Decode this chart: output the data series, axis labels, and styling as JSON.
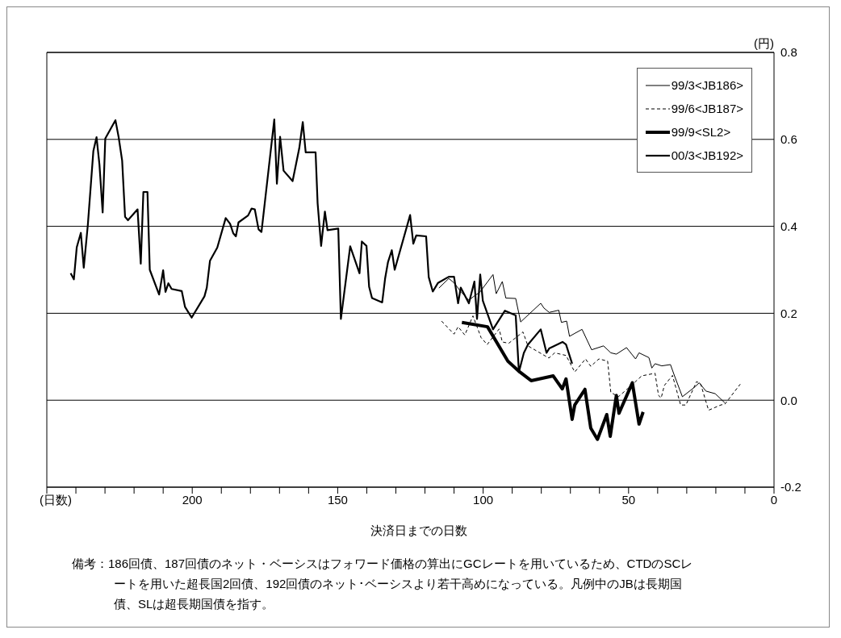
{
  "chart_data": {
    "type": "line",
    "ylabel": "(円)",
    "xlabel": "決済日までの日数",
    "annotations": [
      "(日数)",
      "備考：186回債、187回債のネット・ベーシスはフォワード価格の算出にGCレートを用いているため、CTDのSCレートを用いた超長国2回債、192回債のネット･ベーシスより若干高めになっている。凡例中のJBは長期国債、SLは超長期国債を指す。"
    ],
    "xlim": [
      250,
      0
    ],
    "xticks": [
      {
        "value": 250,
        "label": null
      },
      {
        "value": 240,
        "label": null
      },
      {
        "value": 230,
        "label": null
      },
      {
        "value": 220,
        "label": null
      },
      {
        "value": 210,
        "label": null
      },
      200,
      {
        "value": 190,
        "label": null
      },
      {
        "value": 180,
        "label": null
      },
      {
        "value": 170,
        "label": null
      },
      {
        "value": 160,
        "label": null
      },
      150,
      {
        "value": 140,
        "label": null
      },
      {
        "value": 130,
        "label": null
      },
      {
        "value": 120,
        "label": null
      },
      {
        "value": 110,
        "label": null
      },
      100,
      {
        "value": 90,
        "label": null
      },
      {
        "value": 80,
        "label": null
      },
      {
        "value": 70,
        "label": null
      },
      {
        "value": 60,
        "label": null
      },
      50,
      {
        "value": 40,
        "label": null
      },
      {
        "value": 30,
        "label": null
      },
      {
        "value": 20,
        "label": null
      },
      {
        "value": 10,
        "label": null
      },
      0
    ],
    "ylim": [
      -0.2,
      0.8
    ],
    "yticks": [
      {
        "value": -0.2,
        "label": "-0.2"
      },
      {
        "value": 0,
        "label": "0.0"
      },
      {
        "value": 0.2,
        "label": "0.2"
      },
      {
        "value": 0.4,
        "label": "0.4"
      },
      {
        "value": 0.6,
        "label": "0.6"
      },
      {
        "value": 0.8,
        "label": "0.8"
      }
    ],
    "grid": "y",
    "legend": "top right",
    "marker": "none",
    "series": [
      {
        "name": "99/3<JB186>",
        "color": "#000000",
        "line_style": "solid",
        "x": [
          115.2,
          111.8,
          110.0,
          107.7,
          104.9,
          103.0,
          101.2,
          96.6,
          95.5,
          93.4,
          92.2,
          88.8,
          87.1,
          80.2,
          79.1,
          77.3,
          74.0,
          73.1,
          71.3,
          70.3,
          66.0,
          62.7,
          58.6,
          56.1,
          54.2,
          50.7,
          47.6,
          46.4,
          43.0,
          42.0,
          40.9,
          38.6,
          35.6,
          34.2,
          31.5,
          27.5,
          25.7,
          23.4,
          20.2,
          16.9
        ],
        "values": [
          0.258,
          0.28,
          0.27,
          0.25,
          0.23,
          0.24,
          0.248,
          0.289,
          0.245,
          0.273,
          0.235,
          0.234,
          0.18,
          0.223,
          0.212,
          0.202,
          0.207,
          0.179,
          0.182,
          0.147,
          0.163,
          0.116,
          0.125,
          0.109,
          0.106,
          0.121,
          0.095,
          0.109,
          0.098,
          0.074,
          0.084,
          0.079,
          0.082,
          0.056,
          0.008,
          0.029,
          0.04,
          0.021,
          0.015,
          -0.006
        ]
      },
      {
        "name": "99/6<JB187>",
        "color": "#000000",
        "line_style": "dashed",
        "x": [
          114.3,
          110.0,
          108.6,
          106.3,
          103.5,
          100.7,
          98.6,
          94.5,
          93.4,
          91.2,
          86.3,
          84.6,
          77.4,
          75.4,
          71.5,
          68.5,
          64.8,
          63.0,
          60.2,
          57.2,
          56.1,
          53.5,
          49.2,
          45.5,
          40.9,
          39.7,
          38.8,
          37.7,
          34.9,
          32.1,
          30.3,
          26.6,
          25.2,
          22.5,
          18.3,
          16.9,
          11.6
        ],
        "values": [
          0.182,
          0.152,
          0.169,
          0.15,
          0.194,
          0.144,
          0.128,
          0.164,
          0.134,
          0.131,
          0.157,
          0.125,
          0.097,
          0.109,
          0.103,
          0.065,
          0.095,
          0.078,
          0.095,
          0.09,
          0.018,
          0.008,
          0.033,
          0.056,
          0.062,
          0.011,
          0.005,
          0.034,
          0.057,
          -0.011,
          -0.011,
          0.043,
          0.037,
          -0.023,
          -0.011,
          -0.009,
          0.037
        ]
      },
      {
        "name": "99/9<SL2>",
        "color": "#000000",
        "line_style": "solid",
        "x": [
          107.3,
          98.5,
          91.5,
          87.4,
          83.5,
          75.9,
          72.8,
          71.5,
          69.4,
          68.5,
          65.0,
          63.0,
          60.7,
          57.5,
          56.3,
          54.2,
          53.3,
          48.7,
          46.4,
          45.0
        ],
        "values": [
          0.179,
          0.169,
          0.09,
          0.065,
          0.045,
          0.056,
          0.026,
          0.049,
          -0.044,
          -0.011,
          0.025,
          -0.064,
          -0.09,
          -0.033,
          -0.083,
          0.011,
          -0.03,
          0.04,
          -0.055,
          -0.027
        ]
      },
      {
        "name": "00/3<JB192>",
        "color": "#000000",
        "line_style": "solid",
        "x": [
          241.8,
          240.7,
          239.7,
          238.3,
          237.3,
          235.9,
          234.0,
          232.9,
          231.9,
          230.8,
          229.9,
          226.4,
          225.3,
          224.1,
          223.1,
          222.1,
          218.8,
          217.7,
          216.8,
          215.4,
          214.6,
          211.4,
          210.0,
          209.2,
          208.2,
          207.1,
          203.6,
          202.5,
          200.2,
          195.8,
          195.0,
          193.9,
          191.4,
          188.5,
          187.0,
          185.9,
          185.0,
          184.1,
          180.8,
          179.6,
          178.5,
          177.2,
          176.2,
          171.8,
          170.9,
          169.8,
          168.6,
          165.5,
          163.2,
          162.0,
          161.0,
          157.6,
          156.9,
          155.7,
          154.4,
          153.5,
          149.8,
          148.9,
          145.7,
          142.5,
          141.7,
          140.1,
          139.2,
          138.2,
          134.7,
          133.7,
          132.7,
          131.4,
          130.4,
          125.1,
          124.0,
          123.0,
          119.6,
          118.7,
          117.3,
          115.5,
          111.8,
          110.0,
          108.6,
          107.7,
          104.9,
          103.0,
          102.1,
          101.0,
          100.1,
          96.6,
          92.5,
          88.8,
          87.7,
          86.0,
          84.6,
          80.2,
          78.2,
          77.3,
          72.7,
          71.5,
          69.4
        ],
        "values": [
          0.292,
          0.278,
          0.352,
          0.385,
          0.305,
          0.403,
          0.573,
          0.605,
          0.542,
          0.432,
          0.602,
          0.644,
          0.605,
          0.551,
          0.422,
          0.414,
          0.439,
          0.314,
          0.479,
          0.479,
          0.3,
          0.243,
          0.299,
          0.249,
          0.269,
          0.256,
          0.251,
          0.215,
          0.19,
          0.239,
          0.259,
          0.321,
          0.351,
          0.419,
          0.406,
          0.384,
          0.377,
          0.409,
          0.425,
          0.441,
          0.439,
          0.393,
          0.387,
          0.646,
          0.498,
          0.606,
          0.528,
          0.504,
          0.58,
          0.64,
          0.57,
          0.57,
          0.453,
          0.355,
          0.434,
          0.391,
          0.395,
          0.187,
          0.354,
          0.292,
          0.365,
          0.355,
          0.261,
          0.235,
          0.225,
          0.28,
          0.318,
          0.345,
          0.3,
          0.426,
          0.36,
          0.379,
          0.377,
          0.283,
          0.25,
          0.27,
          0.284,
          0.284,
          0.223,
          0.259,
          0.223,
          0.273,
          0.187,
          0.289,
          0.229,
          0.163,
          0.206,
          0.195,
          0.065,
          0.109,
          0.128,
          0.163,
          0.109,
          0.119,
          0.134,
          0.128,
          0.084
        ]
      }
    ]
  }
}
